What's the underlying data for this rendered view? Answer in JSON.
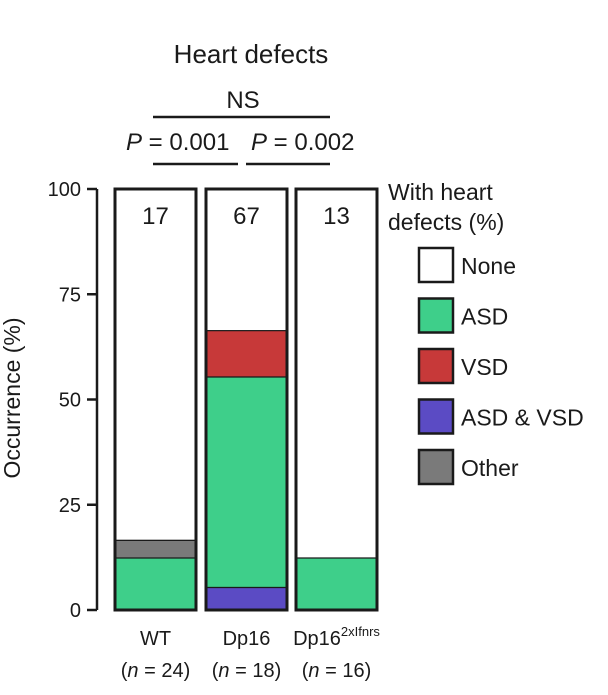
{
  "chart_data": {
    "type": "bar",
    "stacked": true,
    "title": "Heart defects",
    "ylabel": "Occurrence (%)",
    "ylim": [
      0,
      100
    ],
    "yticks": [
      "0",
      "25",
      "50",
      "75",
      "100"
    ],
    "categories": [
      {
        "name": "WT",
        "sup": "",
        "n_label": "n",
        "n_text": " = 24)"
      },
      {
        "name": "Dp16",
        "sup": "",
        "n_label": "n",
        "n_text": " = 18)"
      },
      {
        "name": "Dp16",
        "sup": "2xIfnrs",
        "n_label": "n",
        "n_text": " = 16)"
      }
    ],
    "defect_percent": [
      "17",
      "67",
      "13"
    ],
    "series": [
      {
        "name": "ASD & VSD",
        "color": "#5b4bc4",
        "values": [
          0,
          5.5,
          0
        ]
      },
      {
        "name": "ASD",
        "color": "#3ecf8a",
        "values": [
          12.5,
          50,
          12.5
        ]
      },
      {
        "name": "VSD",
        "color": "#c73939",
        "values": [
          0,
          11,
          0
        ]
      },
      {
        "name": "Other",
        "color": "#7a7a7a",
        "values": [
          4.2,
          0,
          0
        ]
      },
      {
        "name": "None",
        "color": "#ffffff",
        "values": [
          83.3,
          33.5,
          87.5
        ]
      }
    ],
    "legend": {
      "title_line1": "With heart",
      "title_line2": "defects (%)",
      "order": [
        "None",
        "ASD",
        "VSD",
        "ASD & VSD",
        "Other"
      ],
      "placement": "right"
    },
    "comparisons": {
      "top": "NS",
      "left": {
        "p": "P",
        "text": " = 0.001"
      },
      "right": {
        "p": "P",
        "text": " = 0.002"
      }
    }
  }
}
